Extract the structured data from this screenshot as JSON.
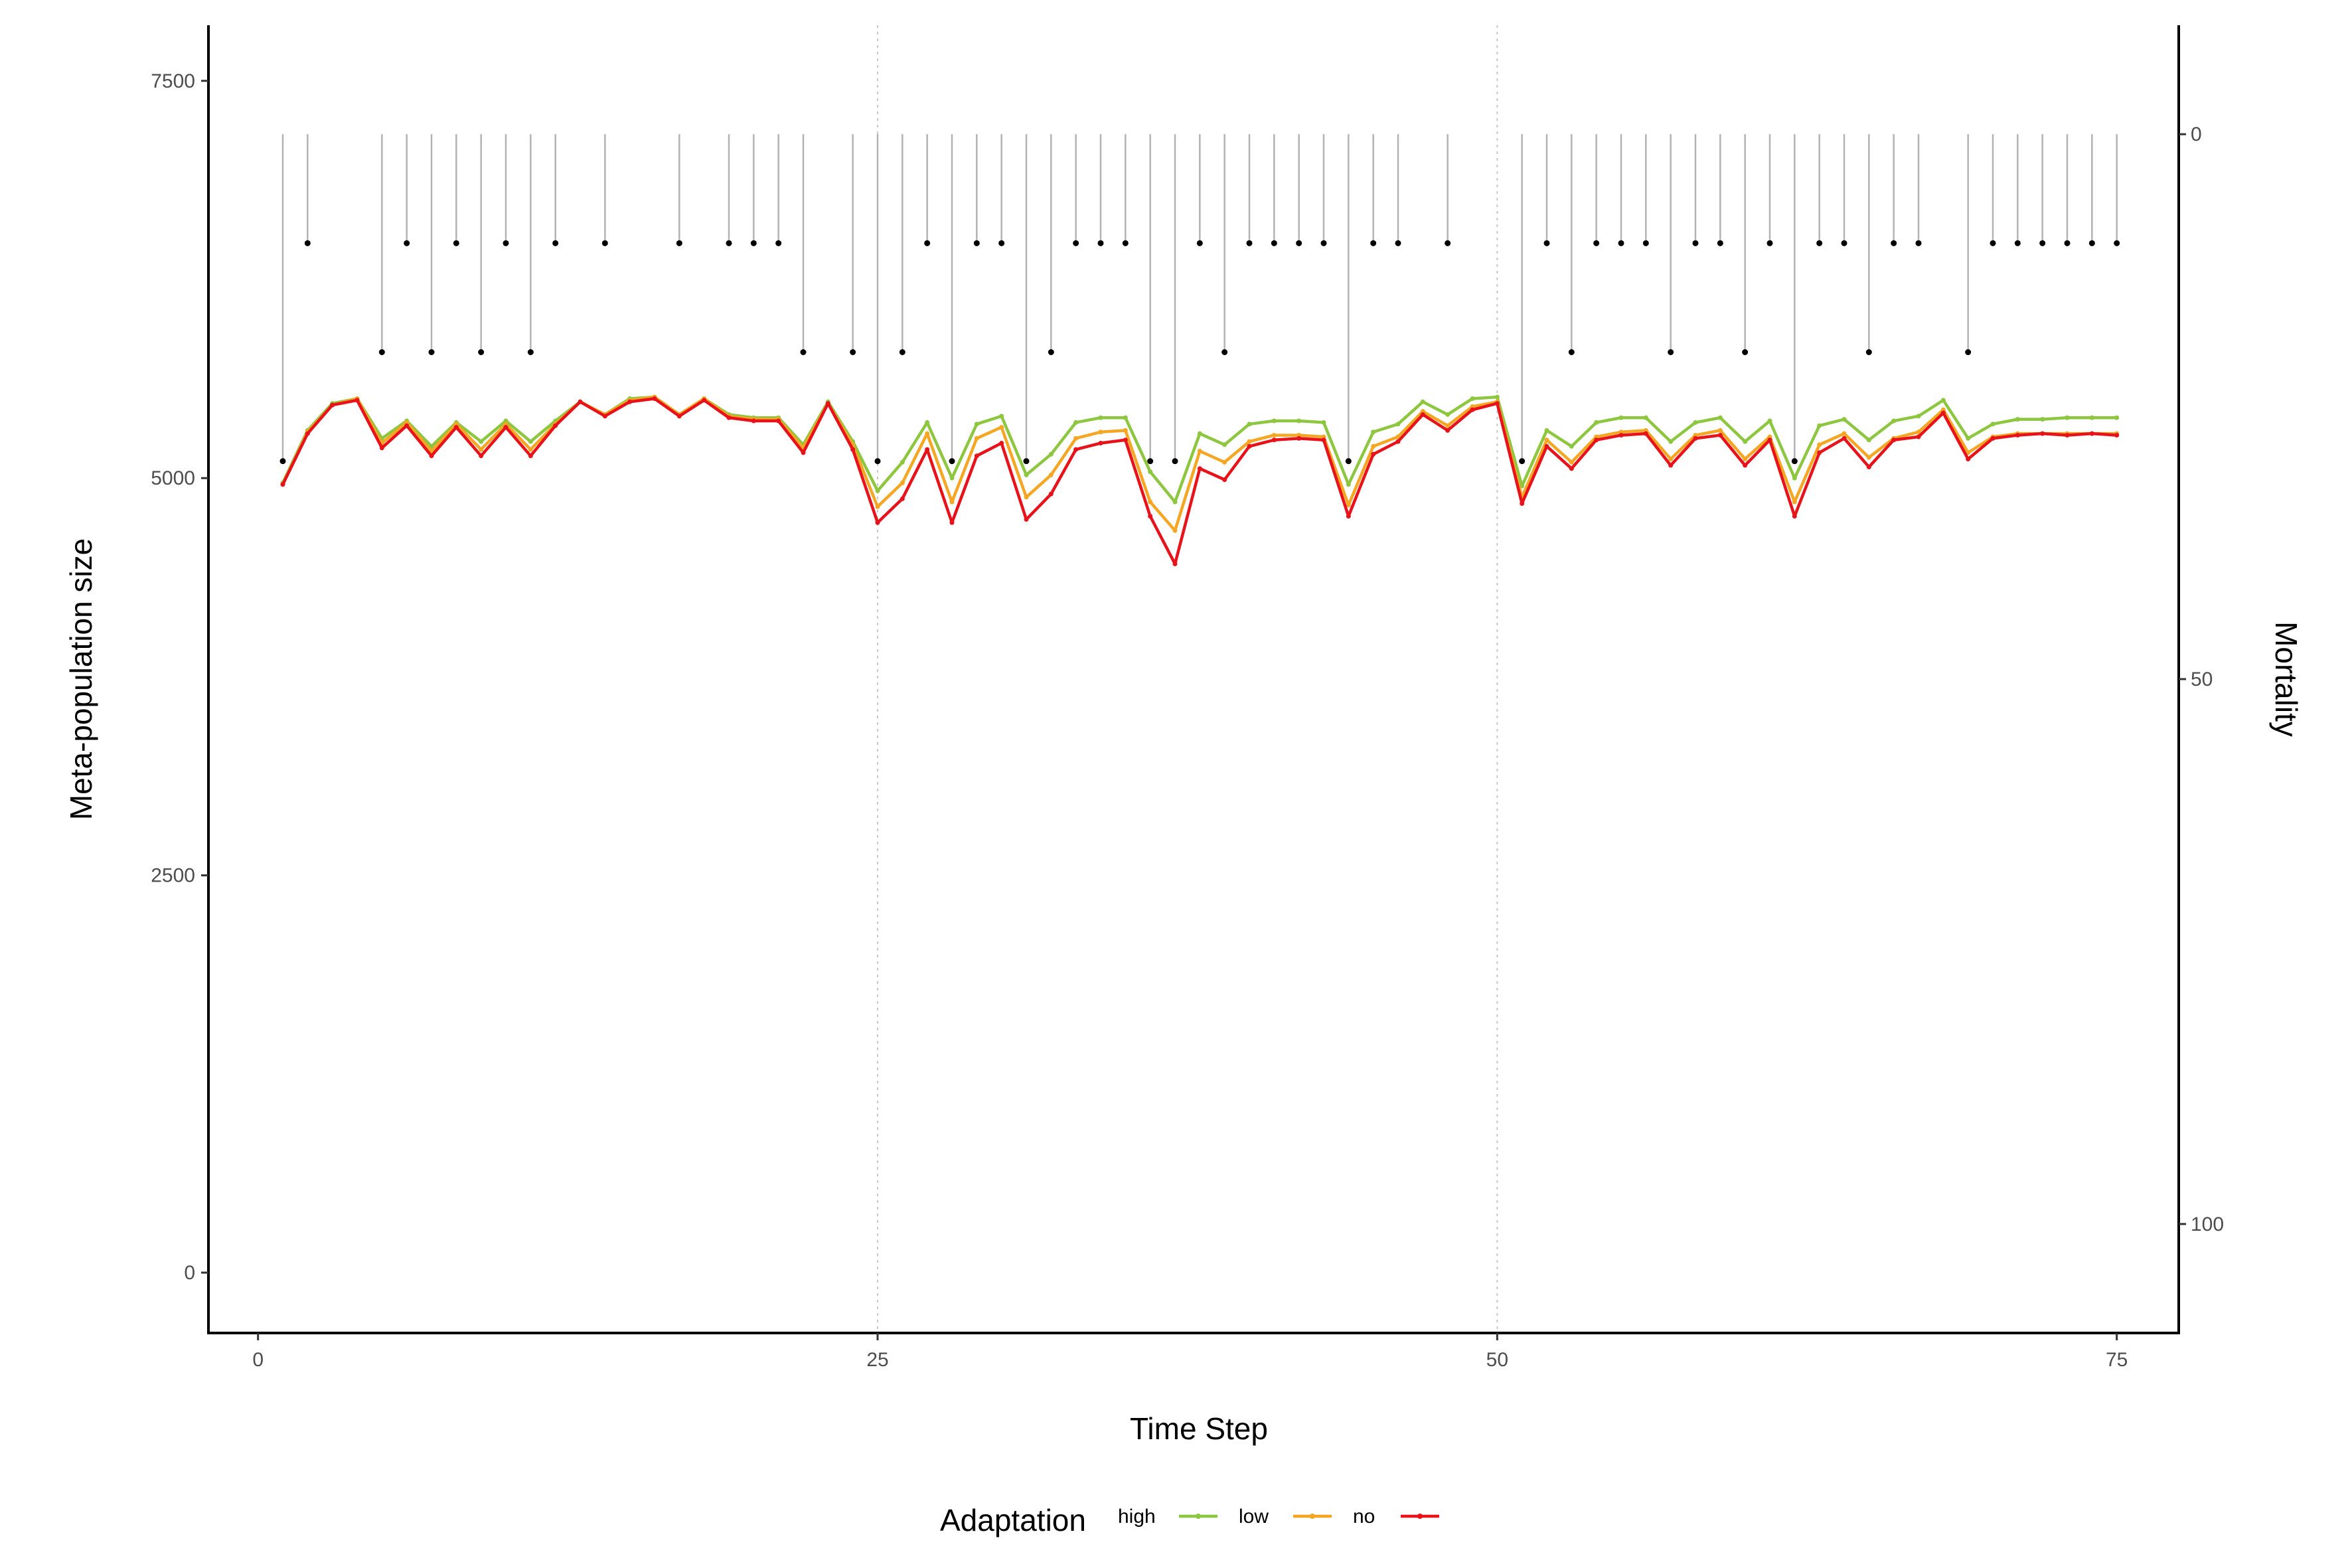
{
  "chart_data": {
    "type": "line",
    "xlabel": "Time Step",
    "ylabel": "Meta-population size",
    "y2label": "Mortality",
    "xlim": [
      -2,
      77.5
    ],
    "ylim": [
      -380,
      7850
    ],
    "y2lim": [
      110,
      -10
    ],
    "y2_reversed": true,
    "x_ticks": [
      0,
      25,
      50,
      75
    ],
    "y_ticks": [
      0,
      2500,
      5000,
      7500
    ],
    "y2_ticks": [
      0,
      50,
      100
    ],
    "vlines": [
      25,
      50
    ],
    "grid": false,
    "legend": {
      "title": "Adaptation",
      "position": "bottom",
      "labels": [
        "high",
        "low",
        "no"
      ]
    },
    "series": [
      {
        "name": "high",
        "color": "#8dc63f",
        "x": [
          1,
          2,
          3,
          4,
          5,
          6,
          7,
          8,
          9,
          10,
          11,
          12,
          13,
          14,
          15,
          16,
          17,
          18,
          19,
          20,
          21,
          22,
          23,
          24,
          25,
          26,
          27,
          28,
          29,
          30,
          31,
          32,
          33,
          34,
          35,
          36,
          37,
          38,
          39,
          40,
          41,
          42,
          43,
          44,
          45,
          46,
          47,
          48,
          49,
          50,
          51,
          52,
          53,
          54,
          55,
          56,
          57,
          58,
          59,
          60,
          61,
          62,
          63,
          64,
          65,
          66,
          67,
          68,
          69,
          70,
          71,
          72,
          73,
          74,
          75
        ],
        "y": [
          4970,
          5300,
          5470,
          5500,
          5250,
          5360,
          5200,
          5350,
          5230,
          5360,
          5230,
          5360,
          5480,
          5400,
          5500,
          5510,
          5400,
          5500,
          5400,
          5380,
          5380,
          5210,
          5480,
          5230,
          4920,
          5100,
          5350,
          5000,
          5340,
          5390,
          5020,
          5150,
          5350,
          5380,
          5380,
          5040,
          4850,
          5280,
          5210,
          5340,
          5360,
          5360,
          5350,
          4960,
          5290,
          5340,
          5480,
          5400,
          5500,
          5510,
          4950,
          5300,
          5200,
          5350,
          5380,
          5380,
          5230,
          5350,
          5380,
          5230,
          5360,
          5000,
          5330,
          5370,
          5240,
          5360,
          5390,
          5490,
          5250,
          5340,
          5370,
          5370,
          5380,
          5380,
          5380
        ]
      },
      {
        "name": "low",
        "color": "#f5a623",
        "x": [
          1,
          2,
          3,
          4,
          5,
          6,
          7,
          8,
          9,
          10,
          11,
          12,
          13,
          14,
          15,
          16,
          17,
          18,
          19,
          20,
          21,
          22,
          23,
          24,
          25,
          26,
          27,
          28,
          29,
          30,
          31,
          32,
          33,
          34,
          35,
          36,
          37,
          38,
          39,
          40,
          41,
          42,
          43,
          44,
          45,
          46,
          47,
          48,
          49,
          50,
          51,
          52,
          53,
          54,
          55,
          56,
          57,
          58,
          59,
          60,
          61,
          62,
          63,
          64,
          65,
          66,
          67,
          68,
          69,
          70,
          71,
          72,
          73,
          74,
          75
        ],
        "y": [
          4960,
          5290,
          5460,
          5500,
          5220,
          5350,
          5170,
          5340,
          5180,
          5340,
          5180,
          5340,
          5480,
          5400,
          5490,
          5510,
          5400,
          5500,
          5390,
          5370,
          5370,
          5190,
          5470,
          5210,
          4820,
          4970,
          5280,
          4850,
          5250,
          5320,
          4880,
          5020,
          5250,
          5290,
          5300,
          4850,
          4670,
          5170,
          5100,
          5230,
          5270,
          5270,
          5260,
          4830,
          5200,
          5260,
          5420,
          5330,
          5450,
          5480,
          4880,
          5240,
          5100,
          5260,
          5290,
          5300,
          5120,
          5270,
          5300,
          5120,
          5260,
          4850,
          5210,
          5280,
          5130,
          5250,
          5290,
          5430,
          5160,
          5260,
          5280,
          5280,
          5280,
          5280,
          5280
        ]
      },
      {
        "name": "no",
        "color": "#e8121b",
        "x": [
          1,
          2,
          3,
          4,
          5,
          6,
          7,
          8,
          9,
          10,
          11,
          12,
          13,
          14,
          15,
          16,
          17,
          18,
          19,
          20,
          21,
          22,
          23,
          24,
          25,
          26,
          27,
          28,
          29,
          30,
          31,
          32,
          33,
          34,
          35,
          36,
          37,
          38,
          39,
          40,
          41,
          42,
          43,
          44,
          45,
          46,
          47,
          48,
          49,
          50,
          51,
          52,
          53,
          54,
          55,
          56,
          57,
          58,
          59,
          60,
          61,
          62,
          63,
          64,
          65,
          66,
          67,
          68,
          69,
          70,
          71,
          72,
          73,
          74,
          75
        ],
        "y": [
          4960,
          5280,
          5460,
          5490,
          5190,
          5330,
          5140,
          5320,
          5140,
          5320,
          5140,
          5330,
          5480,
          5390,
          5480,
          5500,
          5390,
          5490,
          5380,
          5360,
          5360,
          5160,
          5470,
          5180,
          4720,
          4870,
          5180,
          4720,
          5140,
          5220,
          4740,
          4900,
          5180,
          5220,
          5240,
          4760,
          4460,
          5060,
          4990,
          5200,
          5240,
          5250,
          5240,
          4760,
          5150,
          5230,
          5400,
          5300,
          5430,
          5470,
          4840,
          5200,
          5060,
          5240,
          5270,
          5280,
          5080,
          5250,
          5270,
          5080,
          5240,
          4760,
          5160,
          5250,
          5070,
          5240,
          5260,
          5410,
          5120,
          5250,
          5270,
          5280,
          5270,
          5280,
          5270
        ]
      },
      {
        "name": "Mortality",
        "type": "lollipop",
        "axis": "right",
        "color": "#b3b3b3",
        "x": [
          1,
          2,
          5,
          6,
          7,
          8,
          9,
          10,
          11,
          12,
          14,
          17,
          19,
          20,
          21,
          22,
          24,
          25,
          26,
          27,
          28,
          29,
          30,
          31,
          32,
          33,
          34,
          35,
          36,
          37,
          38,
          39,
          40,
          41,
          42,
          43,
          44,
          45,
          46,
          48,
          51,
          52,
          53,
          54,
          55,
          56,
          57,
          58,
          59,
          60,
          61,
          62,
          63,
          64,
          65,
          66,
          67,
          69,
          70,
          71,
          72,
          73,
          74,
          75
        ],
        "y": [
          30,
          10,
          20,
          10,
          20,
          10,
          20,
          10,
          20,
          10,
          10,
          10,
          10,
          10,
          10,
          20,
          20,
          30,
          20,
          10,
          30,
          10,
          10,
          30,
          20,
          10,
          10,
          10,
          30,
          30,
          10,
          20,
          10,
          10,
          10,
          10,
          30,
          10,
          10,
          10,
          30,
          10,
          20,
          10,
          10,
          10,
          20,
          10,
          10,
          20,
          10,
          30,
          10,
          10,
          20,
          10,
          10,
          20,
          10,
          10,
          10,
          10,
          10,
          10
        ]
      }
    ]
  }
}
